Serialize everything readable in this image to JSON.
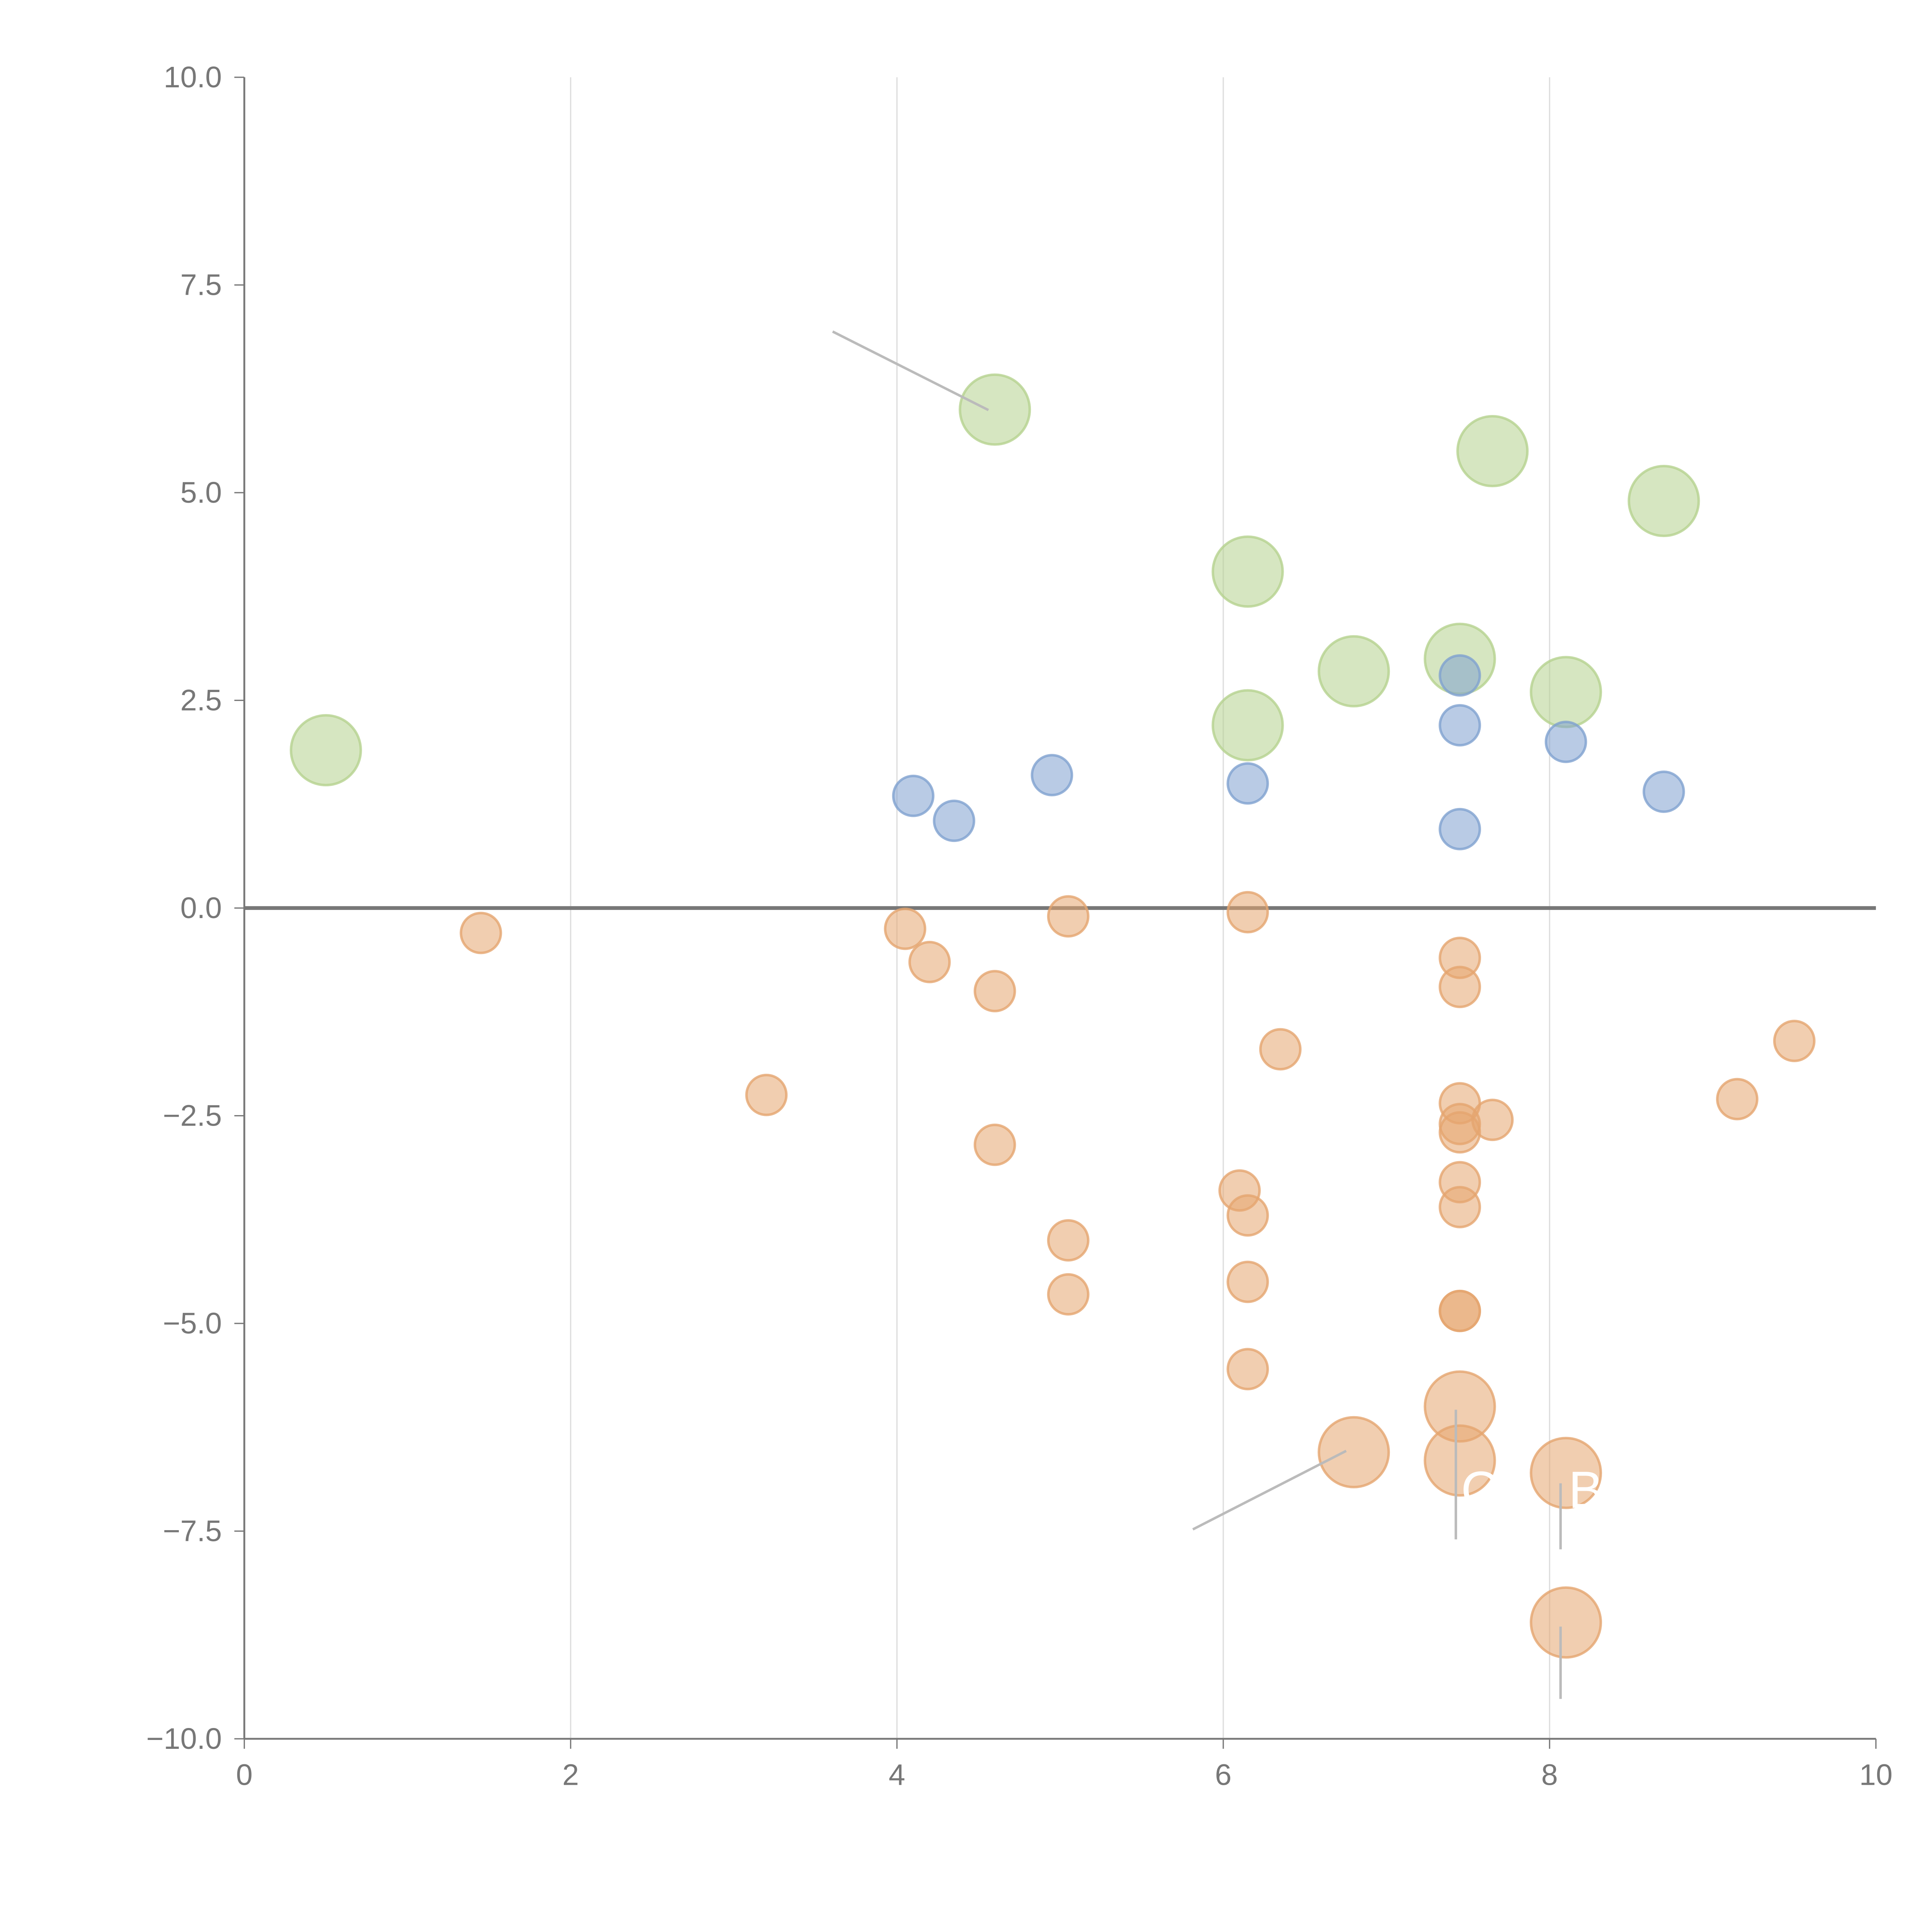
{
  "chart_data": {
    "type": "scatter",
    "title": "",
    "xlabel": "",
    "ylabel": "",
    "xlim": [
      0,
      10
    ],
    "ylim": [
      -10,
      10
    ],
    "xticks": [
      "0",
      "2",
      "4",
      "6",
      "8",
      "10"
    ],
    "yticks": [
      "10.0",
      "7.5",
      "5.0",
      "2.5",
      "0.0",
      "−2.5",
      "−5.0",
      "−7.5",
      "−10.0"
    ],
    "grid": "vertical",
    "colors": {
      "green": "#b5d28e",
      "blue": "#7fa1cf",
      "orange": "#e5a56f"
    },
    "series": [
      {
        "name": "green",
        "size": "large",
        "points": [
          [
            0.5,
            1.9
          ],
          [
            4.6,
            6.0
          ],
          [
            7.65,
            5.5
          ],
          [
            8.7,
            4.9
          ],
          [
            6.15,
            4.05
          ],
          [
            7.45,
            3.0
          ],
          [
            6.8,
            2.85
          ],
          [
            8.1,
            2.6
          ],
          [
            6.15,
            2.2
          ]
        ]
      },
      {
        "name": "blue",
        "size": "small",
        "points": [
          [
            4.1,
            1.35
          ],
          [
            4.35,
            1.05
          ],
          [
            4.95,
            1.6
          ],
          [
            6.15,
            1.5
          ],
          [
            7.45,
            2.8
          ],
          [
            7.45,
            2.2
          ],
          [
            8.1,
            2.0
          ],
          [
            8.7,
            1.4
          ],
          [
            7.45,
            0.95
          ]
        ]
      },
      {
        "name": "orange",
        "size": "small",
        "points": [
          [
            1.45,
            -0.3
          ],
          [
            4.05,
            -0.25
          ],
          [
            4.2,
            -0.65
          ],
          [
            4.6,
            -1.0
          ],
          [
            5.05,
            -0.1
          ],
          [
            6.15,
            -0.05
          ],
          [
            3.2,
            -2.25
          ],
          [
            4.6,
            -2.85
          ],
          [
            6.35,
            -1.7
          ],
          [
            7.45,
            -0.6
          ],
          [
            7.45,
            -0.95
          ],
          [
            7.45,
            -2.35
          ],
          [
            7.45,
            -2.6
          ],
          [
            7.45,
            -2.7
          ],
          [
            7.65,
            -2.55
          ],
          [
            9.5,
            -1.6
          ],
          [
            9.15,
            -2.3
          ],
          [
            6.1,
            -3.4
          ],
          [
            6.15,
            -3.7
          ],
          [
            7.45,
            -3.3
          ],
          [
            7.45,
            -3.6
          ],
          [
            5.05,
            -4.0
          ],
          [
            5.05,
            -4.65
          ],
          [
            6.15,
            -4.5
          ],
          [
            7.45,
            -4.85
          ],
          [
            7.45,
            -4.85
          ],
          [
            6.15,
            -5.55
          ]
        ]
      },
      {
        "name": "orange-large",
        "size": "large",
        "points": [
          [
            7.45,
            -6.0
          ],
          [
            6.8,
            -6.55
          ],
          [
            7.45,
            -6.65
          ],
          [
            8.1,
            -6.8
          ],
          [
            8.1,
            -8.6
          ]
        ]
      }
    ],
    "annotations": [
      {
        "text": "C",
        "x": 7.45,
        "y": -6.8
      },
      {
        "text": "B",
        "x": 8.1,
        "y": -6.8
      }
    ]
  }
}
